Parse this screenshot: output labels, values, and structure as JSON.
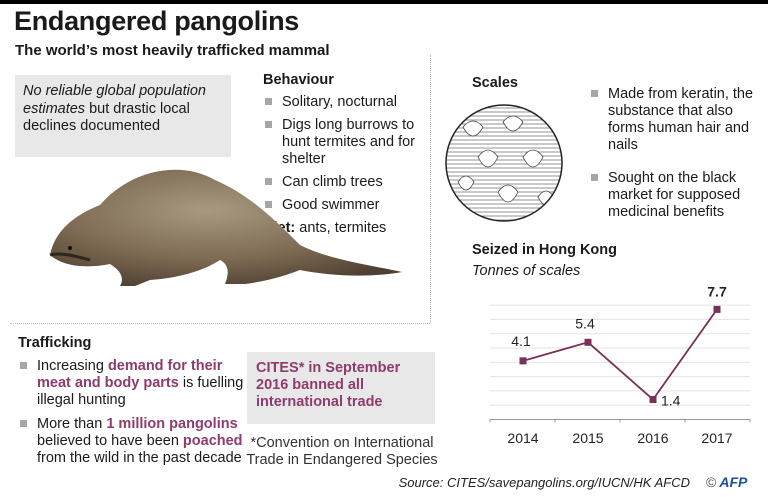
{
  "header": {
    "title": "Endangered pangolins",
    "subtitle": "The world’s most heavily trafficked mammal"
  },
  "population_note": {
    "italic": "No reliable global population estimates",
    "rest": " but drastic local declines documented"
  },
  "behaviour": {
    "heading": "Behaviour",
    "items": [
      "Solitary, nocturnal",
      "Digs long burrows to hunt termites and for shelter",
      "Can climb trees",
      "Good swimmer"
    ],
    "diet_label": "Diet:",
    "diet_value": " ants, termites"
  },
  "scales": {
    "heading": "Scales",
    "items": [
      "Made from keratin, the substance that also forms human hair and nails",
      "Sought on the black market for supposed medicinal benefits"
    ]
  },
  "trafficking": {
    "heading": "Trafficking",
    "item1": {
      "a": "Increasing ",
      "b": "demand for their meat and body parts",
      "c": " is fuelling illegal hunting"
    },
    "item2": {
      "a": "More than ",
      "b": "1 million pangolins",
      "c": " believed to have been ",
      "d": "poached",
      "e": " from the wild in the past decade"
    }
  },
  "cites_box": "CITES* in September 2016 banned all international trade",
  "cites_footnote": "*Convention on International Trade in Endangered Species",
  "source": "Source: CITES/savepangolins.org/IUCN/HK AFCD",
  "credit": {
    "symbol": "©",
    "logo": "AFP"
  },
  "colors": {
    "accent": "#8e3b6d",
    "box": "#e8e8e8",
    "bullet": "#a6a6a6",
    "line": "#7a3058"
  },
  "chart_data": {
    "type": "line",
    "title": "Seized in Hong Kong",
    "subtitle": "Tonnes of scales",
    "categories": [
      "2014",
      "2015",
      "2016",
      "2017"
    ],
    "series": [
      {
        "values": [
          4.1,
          5.4,
          1.4,
          7.7
        ]
      }
    ],
    "data_labels": [
      "4.1",
      "5.4",
      "1.4",
      "7.7"
    ],
    "ylim": [
      0,
      8
    ],
    "grid": true,
    "xlabel": "",
    "ylabel": ""
  }
}
